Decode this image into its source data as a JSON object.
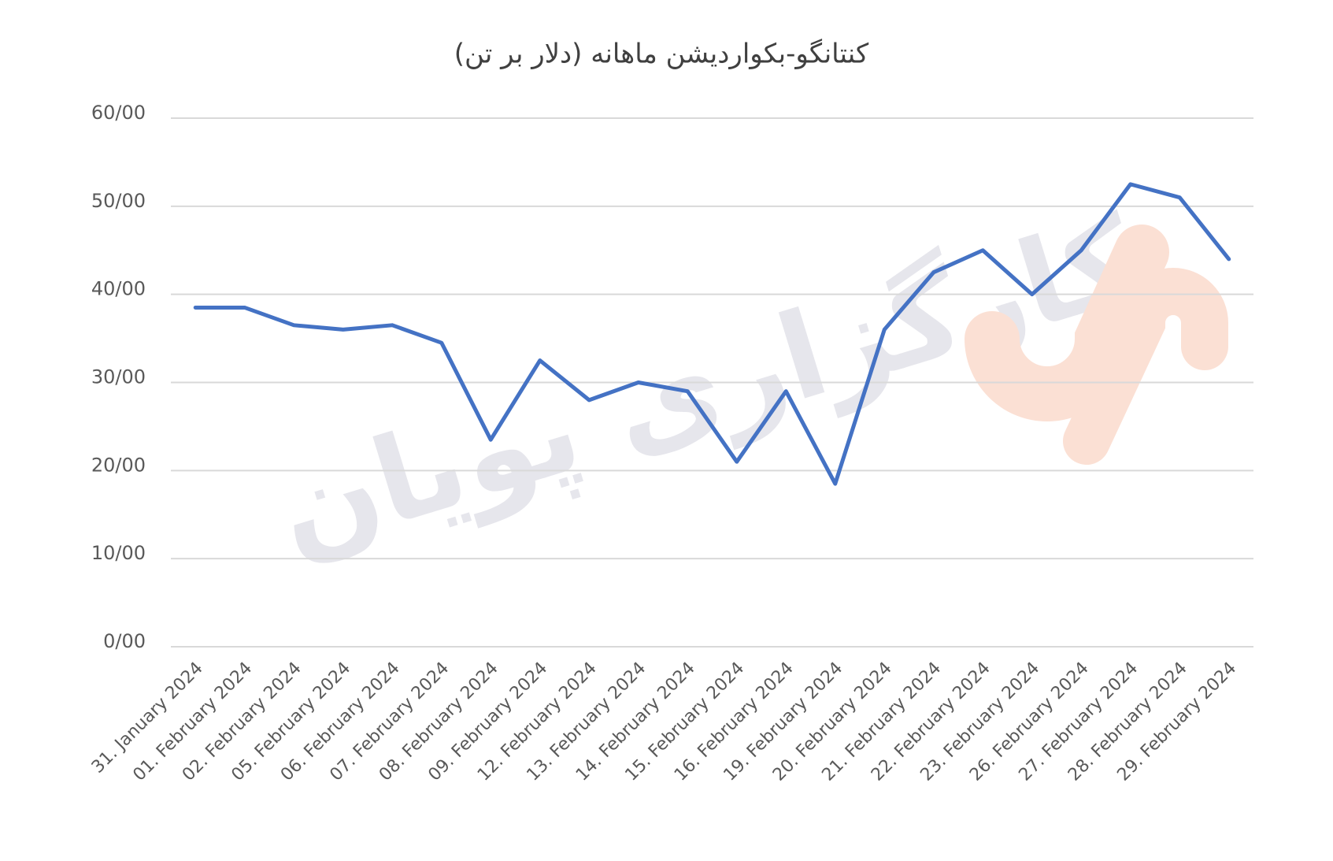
{
  "chart_data": {
    "type": "line",
    "title": "کنتانگو-بکواردیشن ماهانه (دلار بر تن)",
    "watermark": "کارگزاری پویان",
    "categories": [
      "31. January 2024",
      "01. February 2024",
      "02. February 2024",
      "05. February 2024",
      "06. February 2024",
      "07. February 2024",
      "08. February 2024",
      "09. February 2024",
      "12. February 2024",
      "13. February 2024",
      "14. February 2024",
      "15. February 2024",
      "16. February 2024",
      "19. February 2024",
      "20. February 2024",
      "21. February 2024",
      "22. February 2024",
      "23. February 2024",
      "26. February 2024",
      "27. February 2024",
      "28. February 2024",
      "29. February 2024"
    ],
    "values": [
      38.5,
      38.5,
      36.5,
      36,
      36.5,
      34.5,
      23.5,
      32.5,
      28,
      30,
      29,
      21,
      29,
      18.5,
      36,
      42.5,
      45,
      40,
      45,
      52.5,
      51,
      44
    ],
    "color": "#4472c4",
    "ylim": [
      0,
      60
    ],
    "yticks": [
      {
        "value": 0,
        "label": "0/00"
      },
      {
        "value": 10,
        "label": "10/00"
      },
      {
        "value": 20,
        "label": "20/00"
      },
      {
        "value": 30,
        "label": "30/00"
      },
      {
        "value": 40,
        "label": "40/00"
      },
      {
        "value": 50,
        "label": "50/00"
      },
      {
        "value": 60,
        "label": "60/00"
      }
    ],
    "grid": true
  }
}
